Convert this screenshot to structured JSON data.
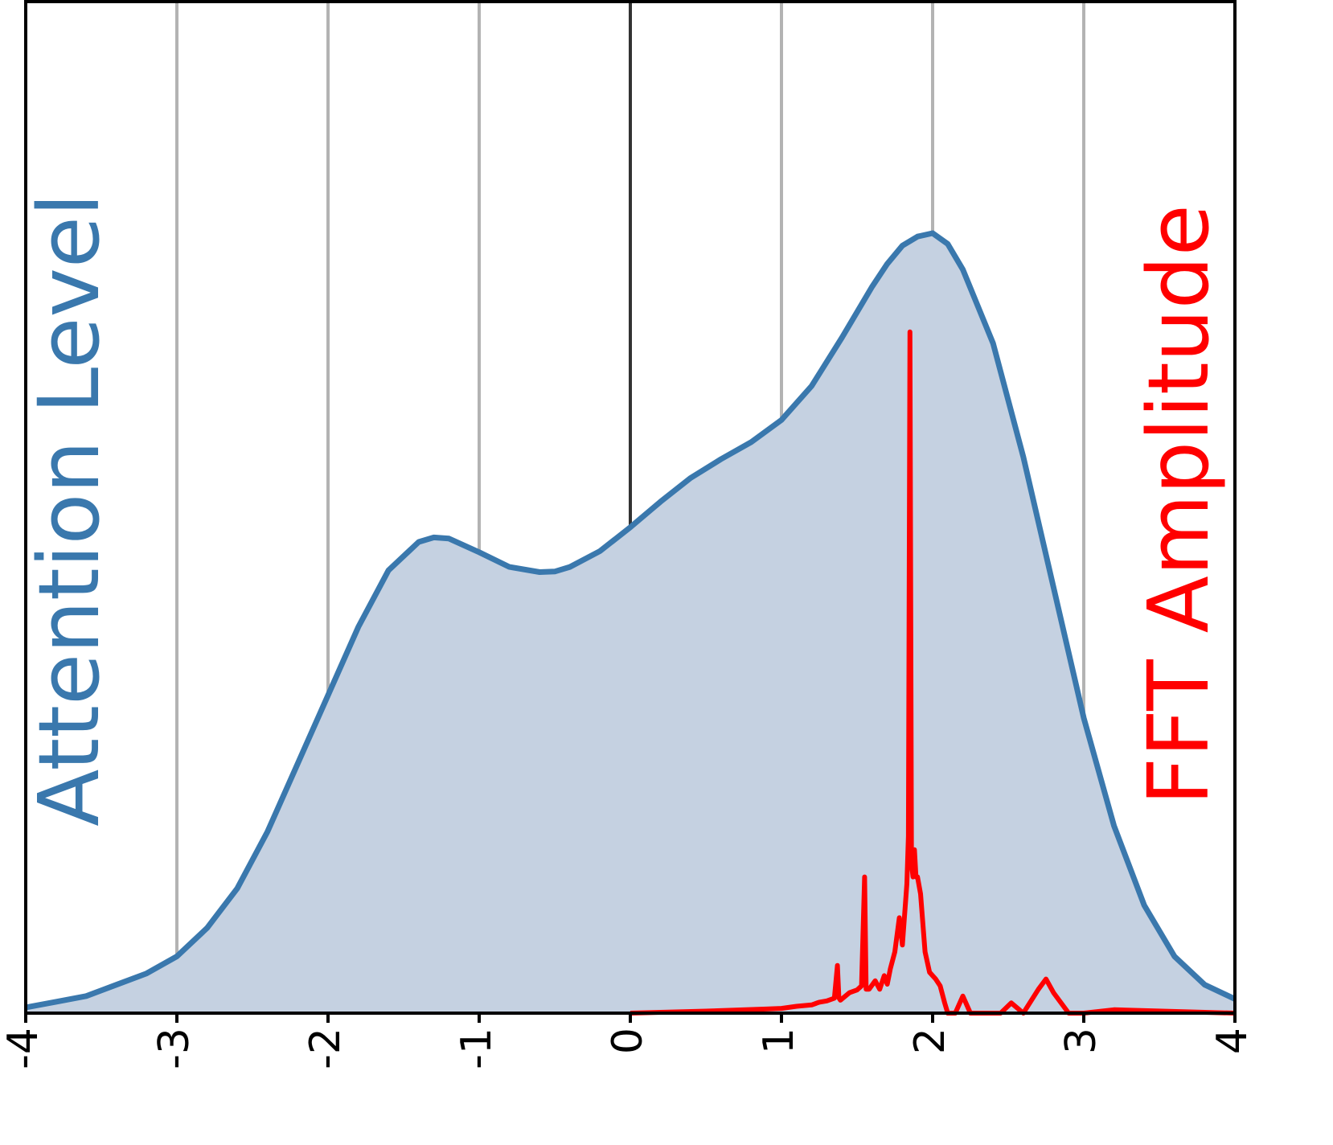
{
  "chart_data": {
    "type": "area",
    "xlim": [
      -4,
      4
    ],
    "x_ticks": [
      "-4",
      "-3",
      "-2",
      "-1",
      "0",
      "1",
      "2",
      "3",
      "4"
    ],
    "grid": "vertical",
    "left_label": "Attention Level",
    "right_label": "FFT Amplitude",
    "colors": {
      "attention_line": "#3a78ad",
      "attention_fill": "#c5d1e1",
      "fft_line": "#ff0000",
      "grid": "#b3b3b3",
      "zero_line": "#333333"
    },
    "series": [
      {
        "x": [
          -4.0,
          -3.8,
          -3.6,
          -3.4,
          -3.2,
          -3.0,
          -2.8,
          -2.6,
          -2.4,
          -2.2,
          -2.0,
          -1.8,
          -1.6,
          -1.4,
          -1.3,
          -1.2,
          -1.0,
          -0.8,
          -0.6,
          -0.5,
          -0.4,
          -0.2,
          0.0,
          0.2,
          0.4,
          0.6,
          0.8,
          1.0,
          1.2,
          1.4,
          1.6,
          1.7,
          1.8,
          1.9,
          2.0,
          2.1,
          2.2,
          2.4,
          2.6,
          2.8,
          3.0,
          3.2,
          3.4,
          3.6,
          3.8,
          4.0
        ],
        "y": [
          0.01,
          0.02,
          0.03,
          0.05,
          0.07,
          0.1,
          0.15,
          0.22,
          0.32,
          0.44,
          0.56,
          0.68,
          0.78,
          0.83,
          0.838,
          0.836,
          0.812,
          0.786,
          0.777,
          0.778,
          0.786,
          0.814,
          0.856,
          0.901,
          0.943,
          0.976,
          1.006,
          1.045,
          1.105,
          1.19,
          1.28,
          1.32,
          1.352,
          1.368,
          1.374,
          1.355,
          1.31,
          1.18,
          0.98,
          0.75,
          0.52,
          0.33,
          0.19,
          0.1,
          0.05,
          0.025
        ]
      },
      {
        "x": [
          0.0,
          0.5,
          0.9,
          1.0,
          1.1,
          1.2,
          1.25,
          1.3,
          1.35,
          1.37,
          1.38,
          1.39,
          1.45,
          1.5,
          1.53,
          1.55,
          1.56,
          1.58,
          1.62,
          1.65,
          1.68,
          1.7,
          1.72,
          1.75,
          1.78,
          1.8,
          1.83,
          1.84,
          1.85,
          1.86,
          1.87,
          1.88,
          1.89,
          1.9,
          1.92,
          1.95,
          1.98,
          2.02,
          2.05,
          2.08,
          2.1,
          2.15,
          2.2,
          2.25,
          2.45,
          2.52,
          2.6,
          2.7,
          2.75,
          2.8,
          2.9,
          3.0,
          3.2,
          4.0
        ],
        "y": [
          0.0,
          0.006,
          0.012,
          0.014,
          0.02,
          0.024,
          0.032,
          0.036,
          0.044,
          0.14,
          0.045,
          0.038,
          0.06,
          0.068,
          0.08,
          0.4,
          0.07,
          0.07,
          0.095,
          0.07,
          0.11,
          0.085,
          0.13,
          0.18,
          0.28,
          0.2,
          0.38,
          0.52,
          2.0,
          0.44,
          0.4,
          0.48,
          0.4,
          0.4,
          0.35,
          0.18,
          0.12,
          0.1,
          0.08,
          0.03,
          0.0,
          0.0,
          0.05,
          0.0,
          0.0,
          0.03,
          0.0,
          0.07,
          0.1,
          0.06,
          0.0,
          0.0,
          0.01,
          0.0
        ]
      }
    ]
  }
}
